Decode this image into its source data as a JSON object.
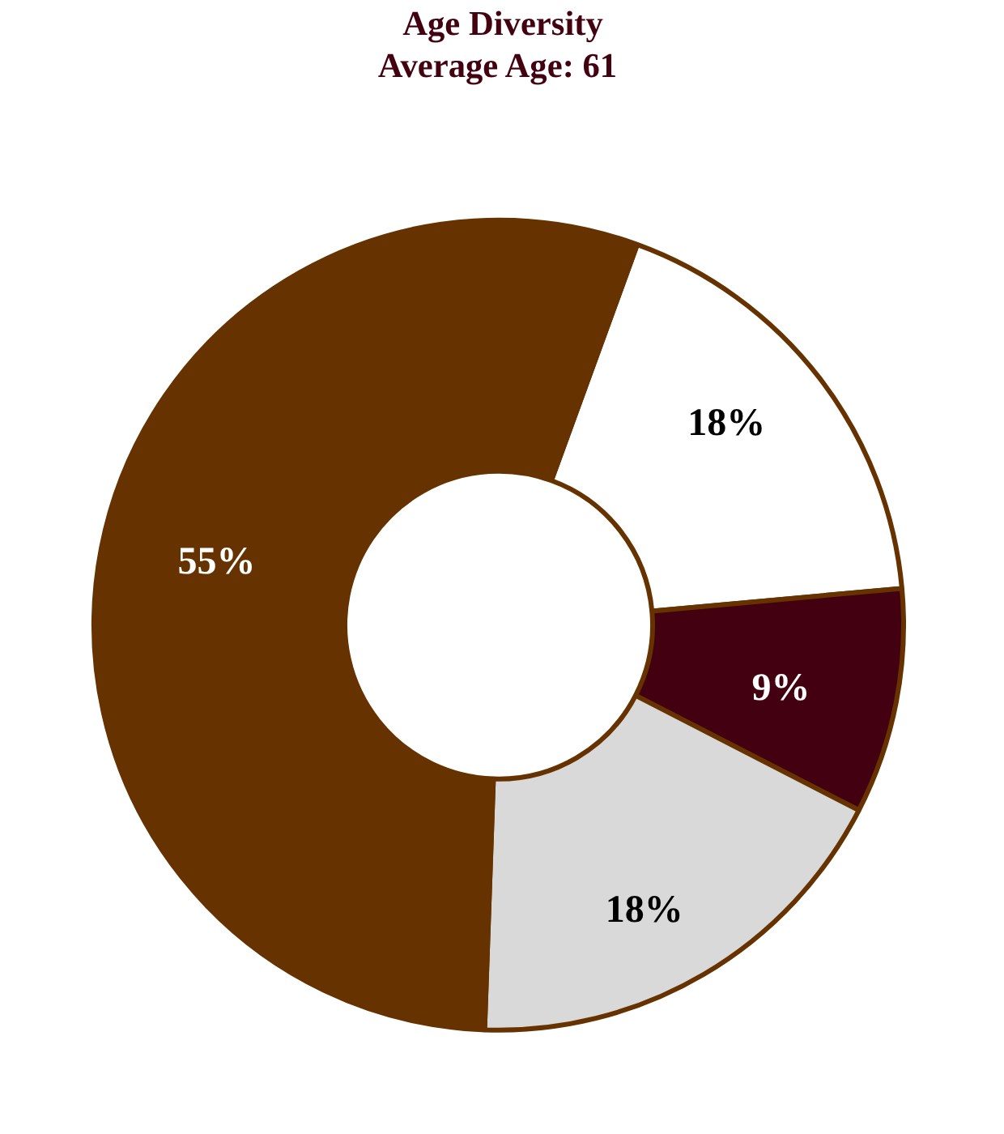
{
  "chart_data": {
    "type": "donut",
    "title": "Age Diversity",
    "subtitle": "Average Age:  61",
    "categories": [
      null,
      null,
      null,
      null
    ],
    "values": [
      18,
      9,
      18,
      55
    ],
    "colors": [
      "#ffffff",
      "#420010",
      "#d9d9d9",
      "#663300"
    ],
    "value_labels": [
      "18%",
      "9%",
      "18%",
      "55%"
    ]
  }
}
